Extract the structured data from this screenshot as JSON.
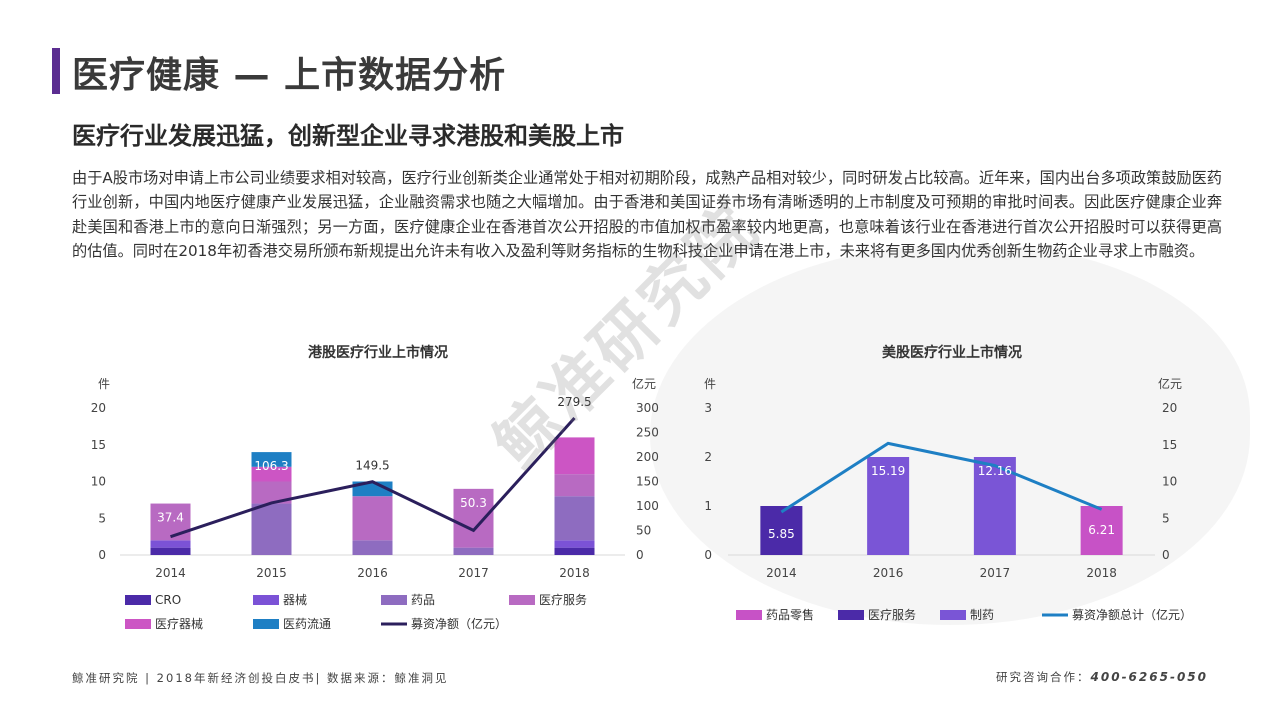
{
  "header": {
    "title": "医疗健康 — 上市数据分析",
    "subtitle": "医疗行业发展迅猛，创新型企业寻求港股和美股上市",
    "paragraph": "由于A股市场对申请上市公司业绩要求相对较高，医疗行业创新类企业通常处于相对初期阶段，成熟产品相对较少，同时研发占比较高。近年来，国内出台多项政策鼓励医药行业创新，中国内地医疗健康产业发展迅猛，企业融资需求也随之大幅增加。由于香港和美国证券市场有清晰透明的上市制度及可预期的审批时间表。因此医疗健康企业奔赴美国和香港上市的意向日渐强烈；另一方面，医疗健康企业在香港首次公开招股的市值加权市盈率较内地更高，也意味着该行业在香港进行首次公开招股时可以获得更高的估值。同时在2018年初香港交易所颁布新规提出允许未有收入及盈利等财务指标的生物科技企业申请在港上市，未来将有更多国内优秀创新生物药企业寻求上市融资。"
  },
  "watermark": "鲸准研究院",
  "footer": {
    "left": "鲸准研究院 | 2018年新经济创投白皮书| 数据来源：鲸准洞见",
    "right_label": "研究咨询合作：",
    "right_phone": "400-6265-050"
  },
  "chart_data": [
    {
      "type": "bar",
      "stacked": true,
      "title": "港股医疗行业上市情况",
      "ylabel_left": "件",
      "ylabel_right": "亿元",
      "ylim_left": [
        0,
        20
      ],
      "ylim_right": [
        0,
        300
      ],
      "yticks_left": [
        0,
        5,
        10,
        15,
        20
      ],
      "yticks_right": [
        0,
        50,
        100,
        150,
        200,
        250,
        300
      ],
      "categories": [
        "2014",
        "2015",
        "2016",
        "2017",
        "2018"
      ],
      "series": [
        {
          "name": "CRO",
          "color": "#4b2aa8",
          "values": [
            1,
            0,
            0,
            0,
            1
          ]
        },
        {
          "name": "器械",
          "color": "#7b52d6",
          "values": [
            1,
            0,
            0,
            0,
            1
          ]
        },
        {
          "name": "药品",
          "color": "#8e6cc0",
          "values": [
            0,
            7,
            2,
            1,
            6
          ]
        },
        {
          "name": "医疗服务",
          "color": "#b86ac2",
          "values": [
            5,
            3,
            6,
            8,
            3
          ]
        },
        {
          "name": "医疗器械",
          "color": "#cc55c4",
          "values": [
            0,
            2,
            0,
            0,
            5
          ]
        },
        {
          "name": "医药流通",
          "color": "#1e7fc4",
          "values": [
            0,
            2,
            2,
            0,
            0
          ]
        }
      ],
      "line": {
        "name": "募资净额（亿元）",
        "color": "#2b1f5c",
        "values": [
          37.4,
          106.3,
          149.5,
          50.3,
          279.5
        ]
      },
      "grid": false,
      "legend_position": "bottom"
    },
    {
      "type": "bar",
      "stacked": true,
      "title": "美股医疗行业上市情况",
      "ylabel_left": "件",
      "ylabel_right": "亿元",
      "ylim_left": [
        0,
        3
      ],
      "ylim_right": [
        0,
        20
      ],
      "yticks_left": [
        0,
        1,
        2,
        3
      ],
      "yticks_right": [
        0,
        5,
        10,
        15,
        20
      ],
      "categories": [
        "2014",
        "2016",
        "2017",
        "2018"
      ],
      "series": [
        {
          "name": "药品零售",
          "color": "#c752c6",
          "values": [
            0,
            0,
            0,
            1
          ]
        },
        {
          "name": "医疗服务",
          "color": "#4b2aa8",
          "values": [
            1,
            0,
            0,
            0
          ]
        },
        {
          "name": "制药",
          "color": "#7a55d6",
          "values": [
            0,
            2,
            2,
            0
          ]
        }
      ],
      "line": {
        "name": "募资净额总计（亿元）",
        "color": "#1e7fc4",
        "values": [
          5.85,
          15.19,
          12.16,
          6.21
        ]
      },
      "grid": false,
      "legend_position": "bottom"
    }
  ]
}
